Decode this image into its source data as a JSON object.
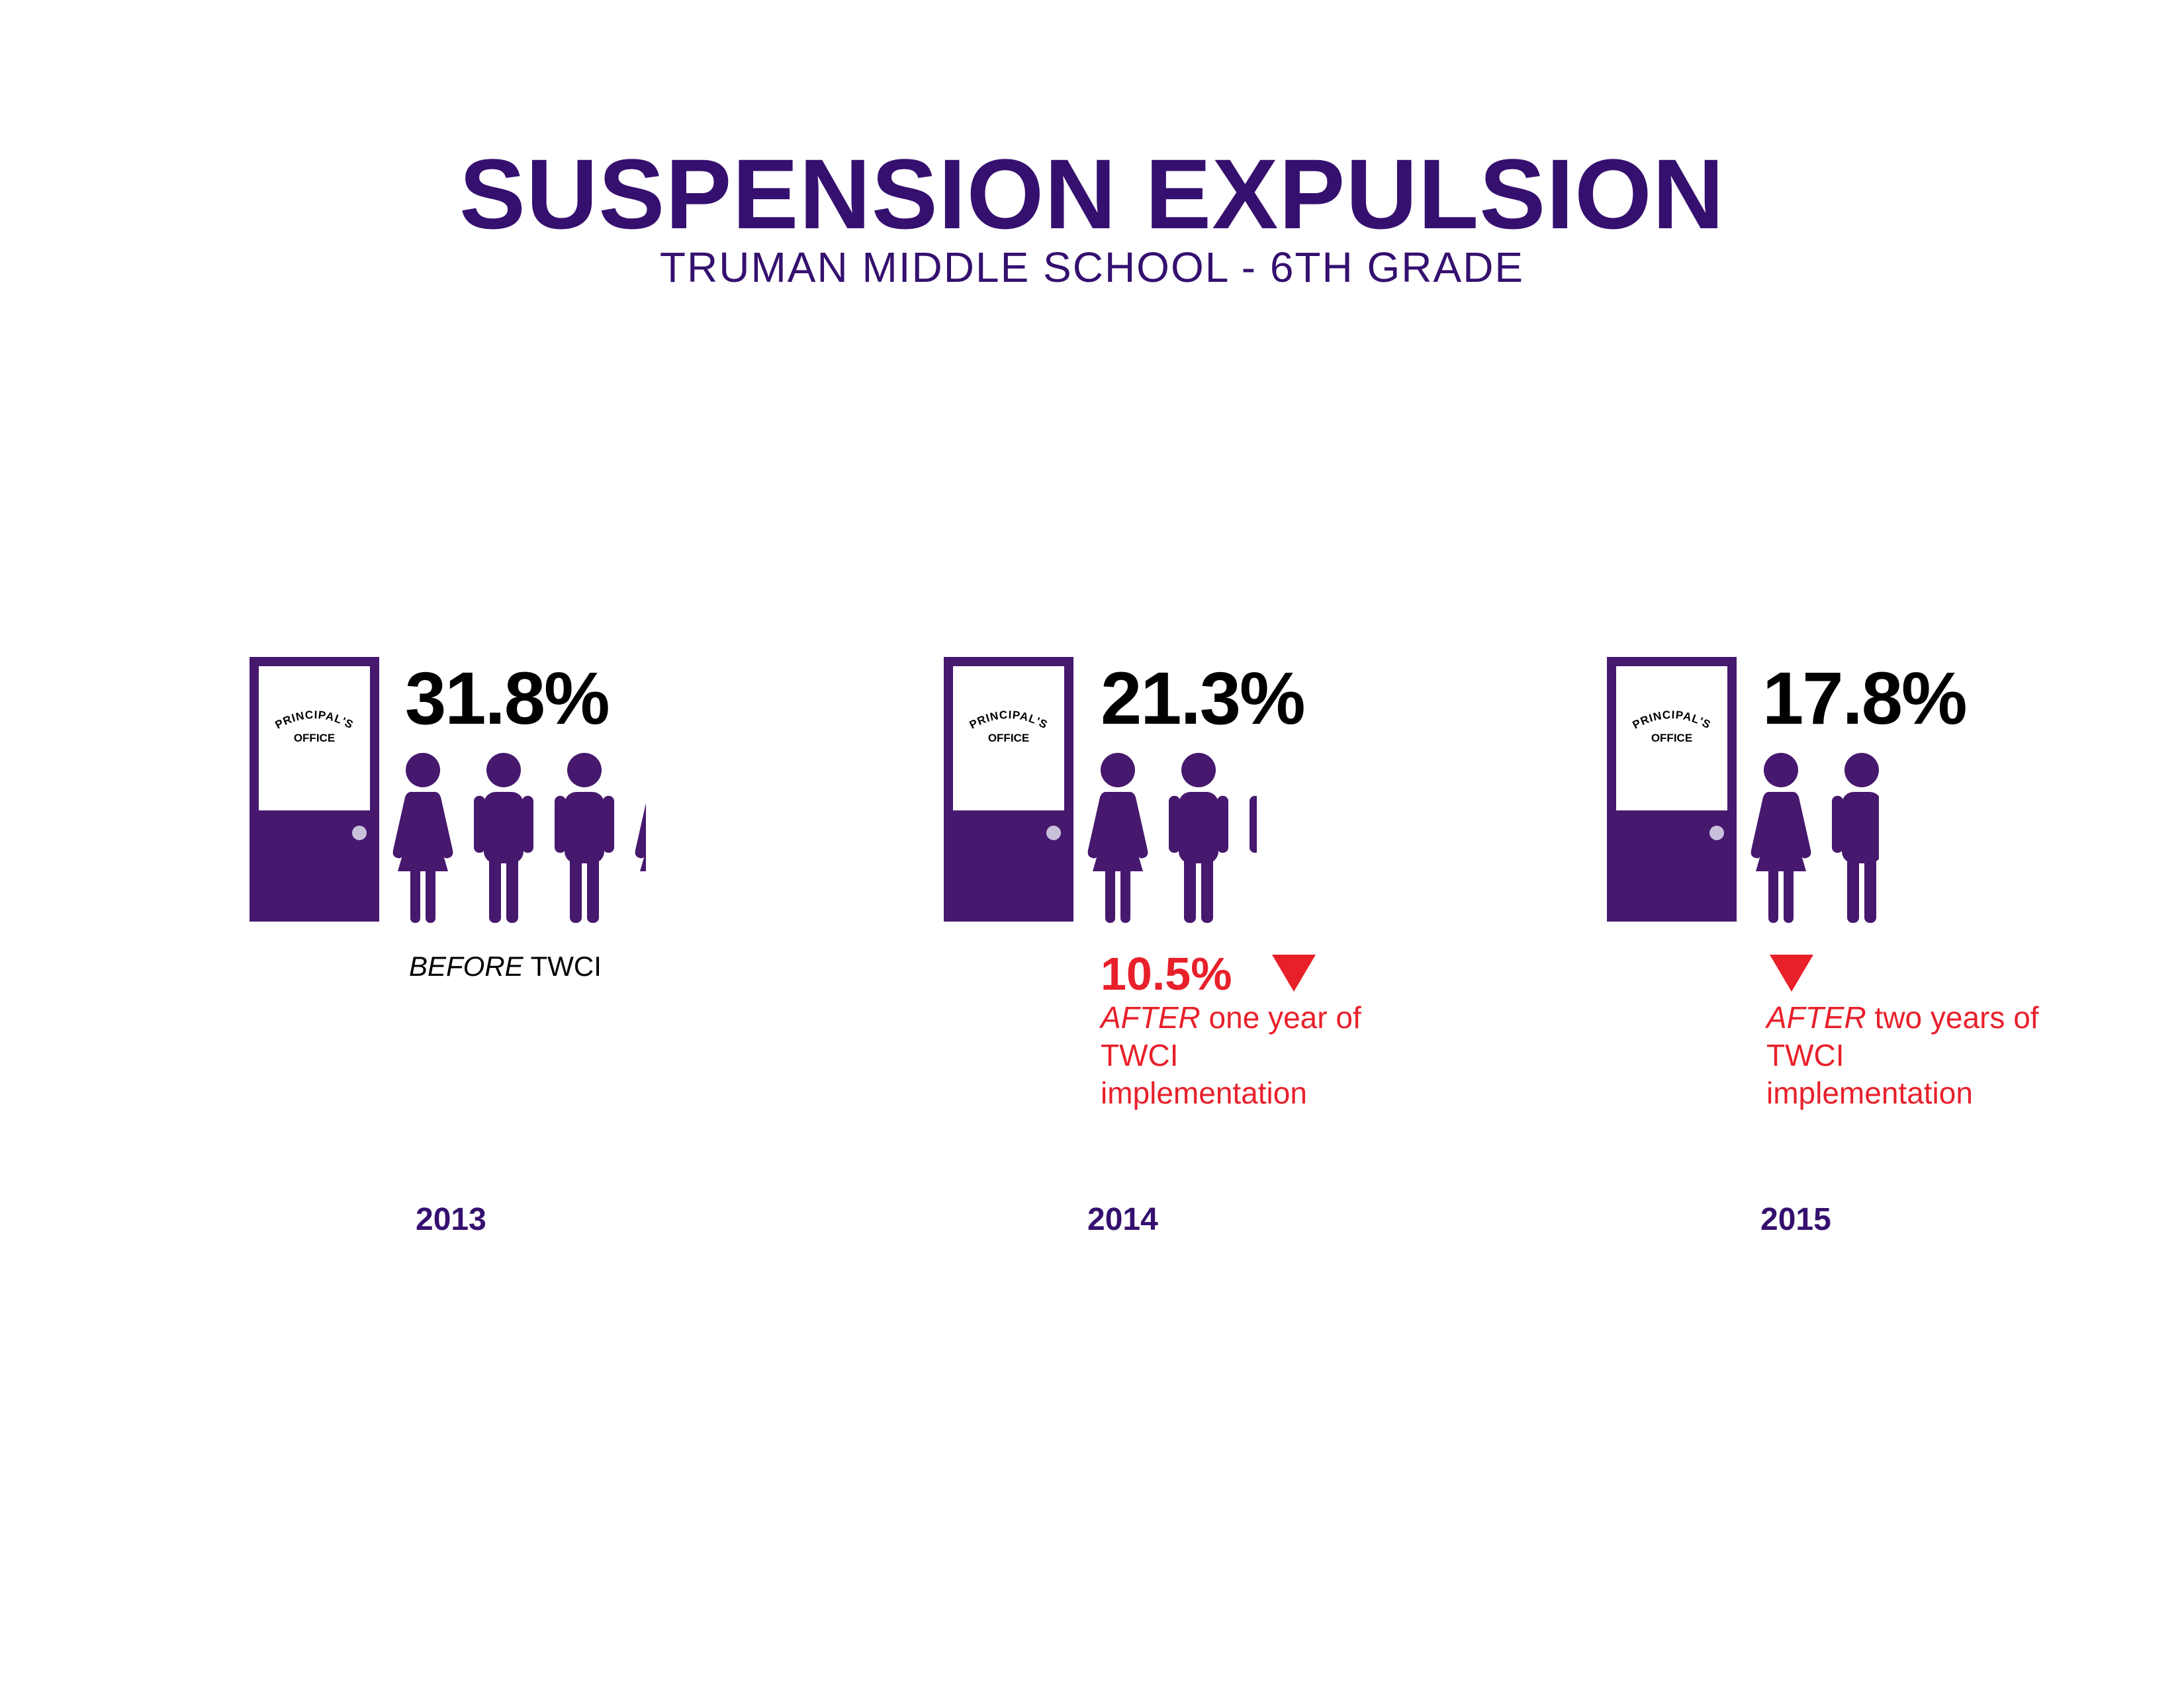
{
  "title": "SUSPENSION EXPULSION",
  "subtitle": "TRUMAN MIDDLE SCHOOL - 6TH GRADE",
  "colors": {
    "purple": "#46186e",
    "title_purple": "#35106f",
    "red": "#e8202a",
    "knob": "#c9c1db"
  },
  "chart_data": {
    "type": "bar",
    "categories": [
      "2013",
      "2014",
      "2015"
    ],
    "values": [
      31.8,
      21.3,
      17.8
    ],
    "value_labels": [
      "31.8%",
      "21.3%",
      "17.8%"
    ],
    "title": "SUSPENSION EXPULSION",
    "subtitle": "TRUMAN MIDDLE SCHOOL - 6TH GRADE",
    "changes": [
      {
        "year": "2014",
        "label": "10.5%"
      },
      {
        "year": "2015",
        "label": ""
      }
    ]
  },
  "panels": [
    {
      "year": "2013",
      "value": 31.8,
      "value_label": "31.8%",
      "door_sign_line1": "PRINCIPAL'S",
      "door_sign_line2": "OFFICE",
      "note_em": "BEFORE",
      "note_rest": " TWCI"
    },
    {
      "year": "2014",
      "value": 21.3,
      "value_label": "21.3%",
      "door_sign_line1": "PRINCIPAL'S",
      "door_sign_line2": "OFFICE",
      "delta": "10.5%",
      "note_em": "AFTER",
      "note_rest": " one year of TWCI implementation"
    },
    {
      "year": "2015",
      "value": 17.8,
      "value_label": "17.8%",
      "door_sign_line1": "PRINCIPAL'S",
      "door_sign_line2": "OFFICE",
      "note_em": "AFTER",
      "note_rest": " two years of TWCI implementation"
    }
  ]
}
